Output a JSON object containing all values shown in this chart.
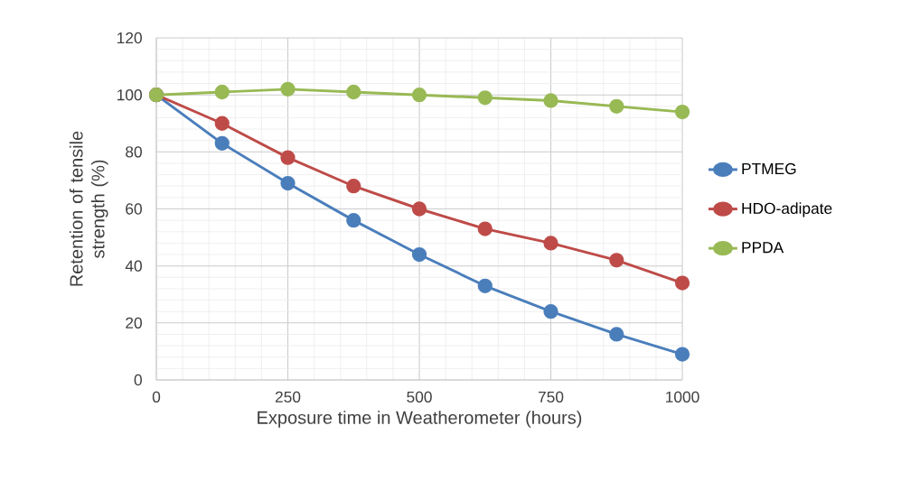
{
  "chart_data": {
    "type": "line",
    "xlabel": "Exposure time in Weatherometer (hours)",
    "ylabel": "Retention of tensile strength (%)",
    "x": [
      0,
      125,
      250,
      375,
      500,
      625,
      750,
      875,
      1000
    ],
    "series": [
      {
        "name": "PTMEG",
        "color": "#4a7ebb",
        "values": [
          100,
          83,
          69,
          56,
          44,
          33,
          24,
          16,
          9
        ]
      },
      {
        "name": "HDO-adipate",
        "color": "#be4b48",
        "values": [
          100,
          90,
          78,
          68,
          60,
          53,
          48,
          42,
          34
        ]
      },
      {
        "name": "PPDA",
        "color": "#98b954",
        "values": [
          100,
          101,
          102,
          101,
          100,
          99,
          98,
          96,
          94
        ]
      }
    ],
    "xlim": [
      0,
      1000
    ],
    "xticks": [
      0,
      250,
      500,
      750,
      1000
    ],
    "ylim": [
      0,
      120
    ],
    "yticks": [
      0,
      20,
      40,
      60,
      80,
      100,
      120
    ],
    "grid": true,
    "legend": "right",
    "marker": "circle",
    "line_style": "solid"
  }
}
